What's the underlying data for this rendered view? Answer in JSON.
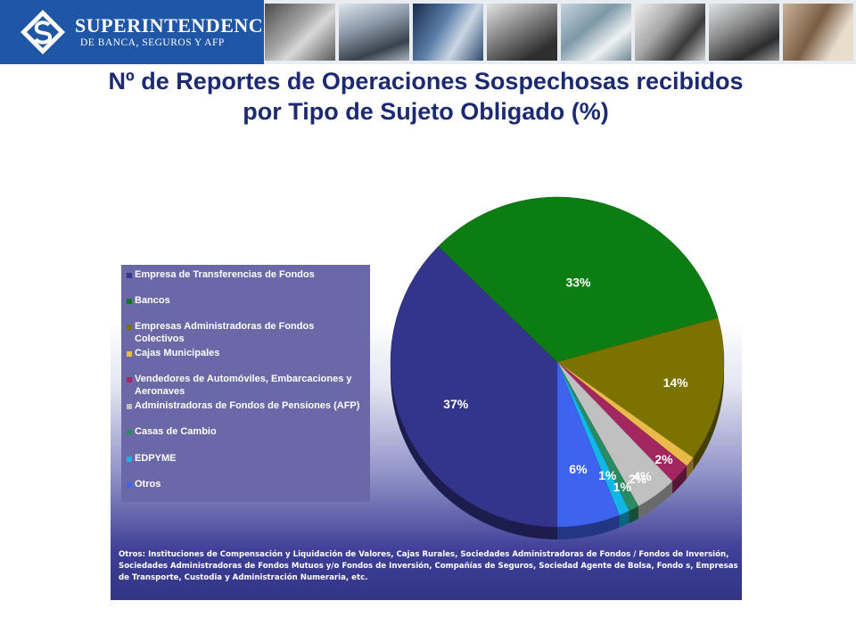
{
  "header": {
    "logo_title": "SUPERINTENDENCIA",
    "logo_subtitle": "DE BANCA, SEGUROS Y AFP"
  },
  "title_line1": "Nº de Reportes de Operaciones Sospechosas recibidos",
  "title_line2": "por Tipo de Sujeto Obligado (%)",
  "chart_data": {
    "type": "pie",
    "title": "Nº de Reportes de Operaciones Sospechosas recibidos por Tipo de Sujeto Obligado (%)",
    "legend_position": "left",
    "slices": [
      {
        "label": "Empresa de Transferencias de Fondos",
        "value": 37,
        "display": "37%",
        "color": "#33358d"
      },
      {
        "label": "Bancos",
        "value": 33,
        "display": "33%",
        "color": "#0c7d12"
      },
      {
        "label": "Empresas Administradoras de Fondos Colectivos",
        "value": 14,
        "display": "14%",
        "color": "#7b7300"
      },
      {
        "label": "Cajas Municipales",
        "value": 1,
        "display": "",
        "color": "#e9b94a"
      },
      {
        "label": "Vendedores de Automóviles, Embarcaciones y Aeronaves",
        "value": 2,
        "display": "2%",
        "color": "#a22760"
      },
      {
        "label": "Administradoras de Fondos de Pensiones (AFP)",
        "value": 4,
        "display": "4%",
        "color": "#c0c0c0"
      },
      {
        "label": "Casas de Cambio",
        "value": 1,
        "display": "1%",
        "color": "#2a8a62"
      },
      {
        "label": "EDPYME",
        "value": 1,
        "display": "1%",
        "color": "#12b7e8"
      },
      {
        "label": "Otros",
        "value": 6,
        "display": "6%",
        "color": "#3d63ef"
      }
    ],
    "extra_labels": [
      "2%"
    ]
  },
  "legend_items": [
    {
      "label": "Empresa de Transferencias de Fondos",
      "color": "#33358d"
    },
    {
      "label": "Bancos",
      "color": "#0c7d12"
    },
    {
      "label": "Empresas Administradoras de Fondos Colectivos",
      "color": "#7b7300"
    },
    {
      "label": "Cajas Municipales",
      "color": "#e9b94a"
    },
    {
      "label": "Vendedores de Automóviles, Embarcaciones y Aeronaves",
      "color": "#a22760"
    },
    {
      "label": "Administradoras de Fondos de Pensiones (AFP)",
      "color": "#c0c0c0"
    },
    {
      "label": "Casas de Cambio",
      "color": "#2a8a62"
    },
    {
      "label": "EDPYME",
      "color": "#12b7e8"
    },
    {
      "label": "Otros",
      "color": "#3d63ef"
    }
  ],
  "note": {
    "line1": "Otros: Instituciones de Compensación y Liquidación de Valores, Cajas Rurales, Sociedades Administradoras de Fondos / Fondos de Inversión,",
    "line2": "Sociedades Administradoras de Fondos Mutuos y/o Fondos de Inversión, Compañías de Seguros, Sociedad Agente  de Bolsa, Fondo s, Empresas",
    "line3": "de Transporte, Custodia y Administración Numeraria, etc."
  }
}
